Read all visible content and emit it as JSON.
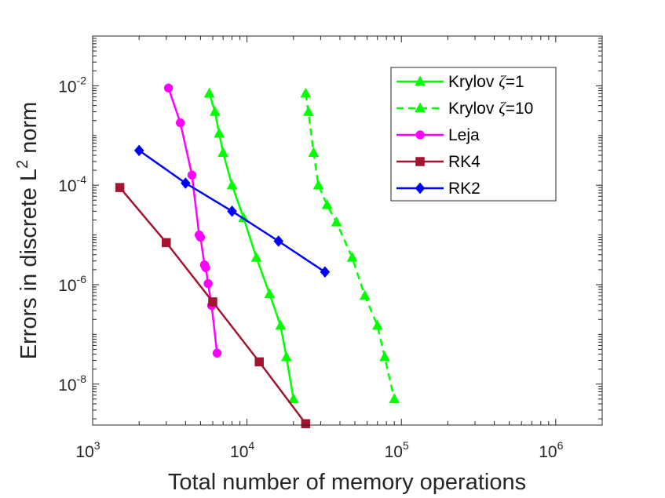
{
  "chart_data": {
    "type": "line",
    "scale": {
      "x": "log",
      "y": "log"
    },
    "xlim": [
      1000,
      2000000
    ],
    "ylim": [
      1.5e-09,
      0.1
    ],
    "xlabel": "Total number of memory operations",
    "ylabel_main": "Errors in discrete L",
    "ylabel_sup": "2",
    "ylabel_tail": " norm",
    "x_ticks": [
      {
        "value": 1000,
        "base": "10",
        "exp": "3"
      },
      {
        "value": 10000,
        "base": "10",
        "exp": "4"
      },
      {
        "value": 100000,
        "base": "10",
        "exp": "5"
      },
      {
        "value": 1000000,
        "base": "10",
        "exp": "6"
      }
    ],
    "y_ticks": [
      {
        "value": 1e-08,
        "base": "10",
        "exp": "-8"
      },
      {
        "value": 1e-06,
        "base": "10",
        "exp": "-6"
      },
      {
        "value": 0.0001,
        "base": "10",
        "exp": "-4"
      },
      {
        "value": 0.01,
        "base": "10",
        "exp": "-2"
      }
    ],
    "legend_position": "top-right",
    "series": [
      {
        "name": "Krylov ζ=1",
        "legend_main": "Krylov ",
        "legend_greek": "ζ",
        "legend_tail": "=1",
        "color": "#00ff00",
        "dash": "solid",
        "marker": "triangle",
        "x": [
          5700,
          6200,
          6600,
          7000,
          8000,
          9500,
          11500,
          14000,
          16500,
          18000,
          20000
        ],
        "y": [
          0.007,
          0.003,
          0.0011,
          0.00045,
          0.0001,
          2.2e-05,
          3.5e-06,
          6.5e-07,
          1.5e-07,
          3.5e-08,
          5e-09
        ]
      },
      {
        "name": "Krylov ζ=10",
        "legend_main": "Krylov ",
        "legend_greek": "ζ",
        "legend_tail": "=10",
        "color": "#00ff00",
        "dash": "dashed",
        "marker": "triangle",
        "x": [
          24000,
          25000,
          27000,
          29000,
          33000,
          38000,
          48000,
          58000,
          70000,
          78000,
          90000
        ],
        "y": [
          0.007,
          0.003,
          0.00045,
          0.0001,
          4e-05,
          1.8e-05,
          3.5e-06,
          6e-07,
          1.5e-07,
          3.5e-08,
          5e-09
        ]
      },
      {
        "name": "Leja",
        "legend_main": "Leja",
        "legend_greek": "",
        "legend_tail": "",
        "color": "#ff00ff",
        "dash": "solid",
        "marker": "circle",
        "x": [
          3100,
          3700,
          4400,
          4900,
          5000,
          5300,
          5400,
          5600,
          5900,
          6400
        ],
        "y": [
          0.009,
          0.0018,
          0.00016,
          1e-05,
          9e-06,
          2.5e-06,
          2.2e-06,
          1.05e-06,
          3.8e-07,
          4.2e-08
        ]
      },
      {
        "name": "RK4",
        "legend_main": "RK4",
        "legend_greek": "",
        "legend_tail": "",
        "color": "#a2142f",
        "dash": "solid",
        "marker": "square",
        "x": [
          1500,
          3000,
          6000,
          12000,
          24000
        ],
        "y": [
          9e-05,
          7e-06,
          4.5e-07,
          2.8e-08,
          1.6e-09
        ]
      },
      {
        "name": "RK2",
        "legend_main": "RK2",
        "legend_greek": "",
        "legend_tail": "",
        "color": "#0000ff",
        "dash": "solid",
        "marker": "diamond",
        "x": [
          2000,
          4000,
          8000,
          16000,
          32000
        ],
        "y": [
          0.0005,
          0.00011,
          3e-05,
          7.5e-06,
          1.8e-06
        ]
      }
    ]
  }
}
